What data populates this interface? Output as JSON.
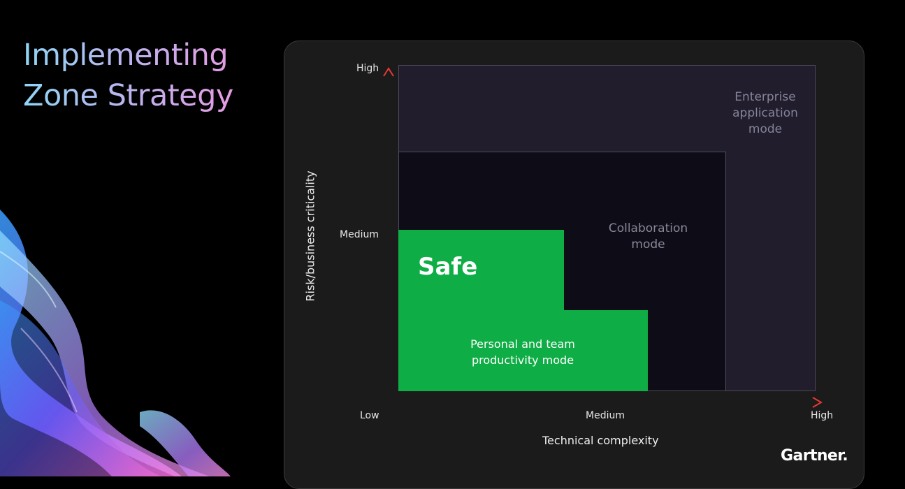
{
  "slide": {
    "title_line1": "Implementing",
    "title_line2": "Zone Strategy"
  },
  "chart": {
    "y_axis_title": "Risk/business criticality",
    "x_axis_title": "Technical complexity",
    "y_ticks": [
      "High",
      "Medium"
    ],
    "x_ticks": [
      "Low",
      "Medium",
      "High"
    ]
  },
  "zones": {
    "enterprise": [
      "Enterprise",
      "application",
      "mode"
    ],
    "collaboration": [
      "Collaboration",
      "mode"
    ],
    "safe": "Safe",
    "personal": [
      "Personal and team",
      "productivity mode"
    ]
  },
  "brand": {
    "logo": "Gartner."
  },
  "colors": {
    "safe_green": "#0fad45",
    "enterprise_bg": "#211d2d",
    "collab_bg": "#0e0c16",
    "axis_start": "#22b14c",
    "axis_mid": "#f4b400",
    "axis_end": "#e53935"
  }
}
